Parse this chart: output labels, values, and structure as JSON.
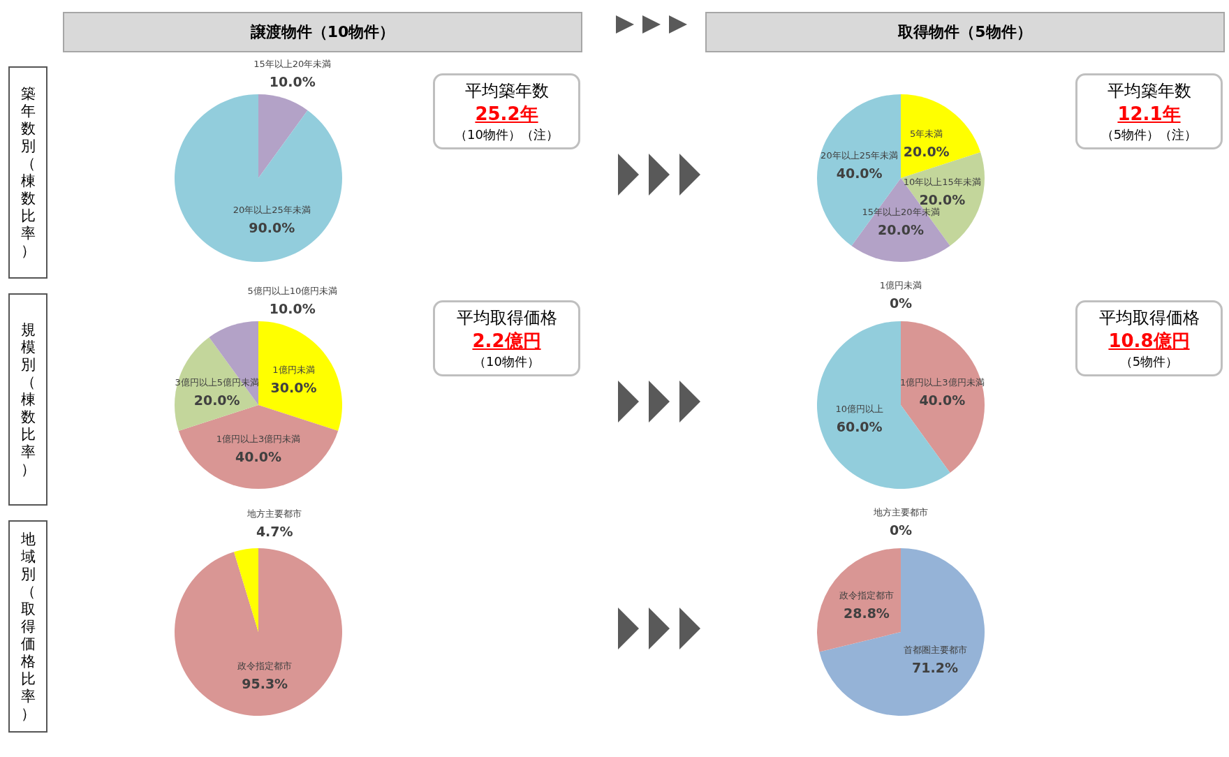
{
  "chart_data": [
    {
      "type": "pie",
      "title": "譲渡物件（10物件）",
      "ylabel": "築年数別（棟数比率）",
      "categories": [
        "15年以上20年未満",
        "20年以上25年未満"
      ],
      "values": [
        10.0,
        90.0
      ],
      "colors": [
        "#b3a2c7",
        "#92cddc"
      ],
      "value_labels": [
        "10.0%",
        "90.0%"
      ],
      "annotations": [
        "平均築年数",
        "25.2年",
        "（10物件）（注）"
      ]
    },
    {
      "type": "pie",
      "title": "取得物件（5物件）",
      "categories": [
        "5年未満",
        "10年以上15年未満",
        "15年以上20年未満",
        "20年以上25年未満"
      ],
      "values": [
        20.0,
        20.0,
        20.0,
        40.0
      ],
      "colors": [
        "#ffff00",
        "#c3d69b",
        "#b3a2c7",
        "#92cddc"
      ],
      "value_labels": [
        "20.0%",
        "20.0%",
        "20.0%",
        "40.0%"
      ],
      "annotations": [
        "平均築年数",
        "12.1年",
        "（5物件）（注）"
      ]
    },
    {
      "type": "pie",
      "ylabel": "規模別（棟数比率）",
      "categories": [
        "1億円未満",
        "1億円以上3億円未満",
        "3億円以上5億円未満",
        "5億円以上10億円未満"
      ],
      "values": [
        30.0,
        40.0,
        20.0,
        10.0
      ],
      "colors": [
        "#ffff00",
        "#d99694",
        "#c3d69b",
        "#b3a2c7"
      ],
      "value_labels": [
        "30.0%",
        "40.0%",
        "20.0%",
        "10.0%"
      ],
      "annotations": [
        "平均取得価格",
        "2.2億円",
        "（10物件）"
      ]
    },
    {
      "type": "pie",
      "categories": [
        "1億円未満",
        "1億円以上3億円未満",
        "10億円以上"
      ],
      "values": [
        0,
        40.0,
        60.0
      ],
      "colors": [
        "#ffff00",
        "#d99694",
        "#92cddc"
      ],
      "value_labels": [
        "0%",
        "40.0%",
        "60.0%"
      ],
      "annotations": [
        "平均取得価格",
        "10.8億円",
        "（5物件）"
      ]
    },
    {
      "type": "pie",
      "ylabel": "地域別（取得価格比率）",
      "categories": [
        "政令指定都市",
        "地方主要都市"
      ],
      "values": [
        95.3,
        4.7
      ],
      "colors": [
        "#d99694",
        "#ffff00"
      ],
      "value_labels": [
        "95.3%",
        "4.7%"
      ]
    },
    {
      "type": "pie",
      "categories": [
        "首都圏主要都市",
        "政令指定都市",
        "地方主要都市"
      ],
      "values": [
        71.2,
        28.8,
        0
      ],
      "colors": [
        "#95b3d7",
        "#d99694",
        "#ffff00"
      ],
      "value_labels": [
        "71.2%",
        "28.8%",
        "0%"
      ]
    }
  ]
}
